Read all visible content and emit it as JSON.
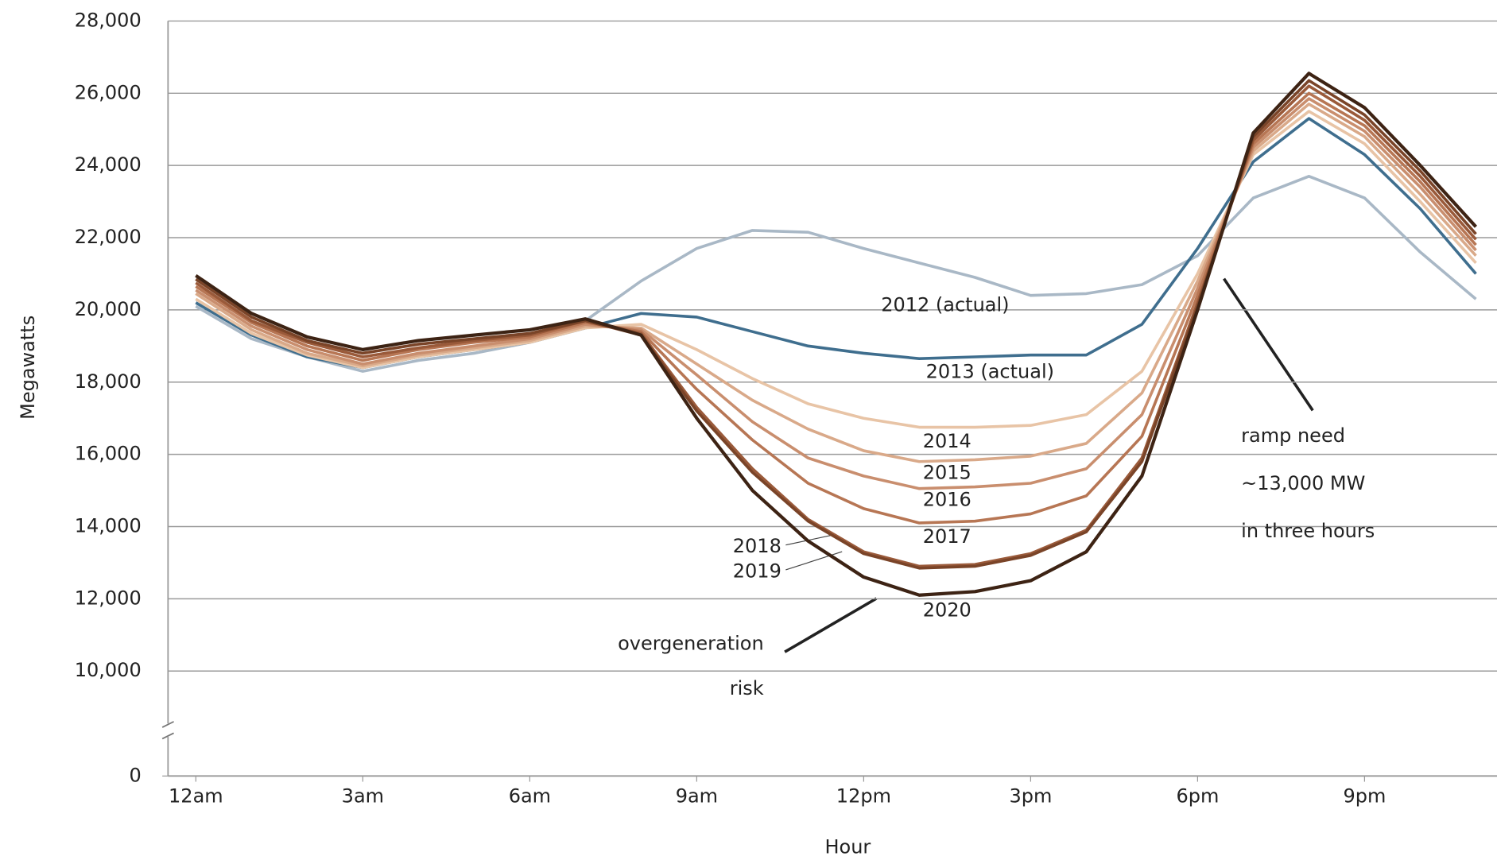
{
  "chart_data": {
    "type": "line",
    "y_label": "Megawatts",
    "x_label": "Hour",
    "x": [
      0,
      1,
      2,
      3,
      4,
      5,
      6,
      7,
      8,
      9,
      10,
      11,
      12,
      13,
      14,
      15,
      16,
      17,
      18,
      19,
      20,
      21,
      22,
      23
    ],
    "xlim": [
      -0.5,
      23.5
    ],
    "xticks": [
      {
        "value": 0,
        "label": "12am"
      },
      {
        "value": 3,
        "label": "3am"
      },
      {
        "value": 6,
        "label": "6am"
      },
      {
        "value": 9,
        "label": "9am"
      },
      {
        "value": 12,
        "label": "12pm"
      },
      {
        "value": 15,
        "label": "3pm"
      },
      {
        "value": 18,
        "label": "6pm"
      },
      {
        "value": 21,
        "label": "9pm"
      }
    ],
    "ylim": [
      0,
      28000
    ],
    "y_break": [
      0,
      10000
    ],
    "yticks": [
      0,
      {
        "value": 10000,
        "label": "10,000"
      },
      {
        "value": 12000,
        "label": "12,000"
      },
      {
        "value": 14000,
        "label": "14,000"
      },
      {
        "value": 16000,
        "label": "16,000"
      },
      {
        "value": 18000,
        "label": "18,000"
      },
      {
        "value": 20000,
        "label": "20,000"
      },
      {
        "value": 22000,
        "label": "22,000"
      },
      {
        "value": 24000,
        "label": "24,000"
      },
      {
        "value": 26000,
        "label": "26,000"
      },
      {
        "value": 28000,
        "label": "28,000"
      }
    ],
    "grid": true,
    "series": [
      {
        "name": "2012 (actual)",
        "color": "#a9b8c6",
        "values": [
          20100,
          19200,
          18700,
          18300,
          18600,
          18800,
          19100,
          19700,
          20800,
          21700,
          22200,
          22150,
          21700,
          21300,
          20900,
          20400,
          20450,
          20700,
          21500,
          23100,
          23700,
          23100,
          21600,
          20300
        ]
      },
      {
        "name": "2013 (actual)",
        "color": "#3f6e8e",
        "values": [
          20200,
          19300,
          18700,
          18400,
          18700,
          18900,
          19100,
          19500,
          19900,
          19800,
          19400,
          19000,
          18800,
          18650,
          18700,
          18750,
          18750,
          19600,
          21700,
          24100,
          25300,
          24300,
          22800,
          21000
        ]
      },
      {
        "name": "2014",
        "color": "#e8c4a6",
        "values": [
          20300,
          19350,
          18750,
          18400,
          18700,
          18900,
          19100,
          19500,
          19600,
          18900,
          18100,
          17400,
          17000,
          16750,
          16750,
          16800,
          17100,
          18300,
          21000,
          24300,
          25500,
          24600,
          23000,
          21300
        ]
      },
      {
        "name": "2015",
        "color": "#d9a989",
        "values": [
          20450,
          19450,
          18800,
          18450,
          18750,
          18950,
          19150,
          19550,
          19500,
          18500,
          17500,
          16700,
          16100,
          15800,
          15850,
          15950,
          16300,
          17700,
          20800,
          24400,
          25700,
          24800,
          23200,
          21500
        ]
      },
      {
        "name": "2016",
        "color": "#c98e6e",
        "values": [
          20550,
          19550,
          18900,
          18500,
          18800,
          19000,
          19200,
          19600,
          19450,
          18200,
          16900,
          15900,
          15400,
          15050,
          15100,
          15200,
          15600,
          17100,
          20600,
          24500,
          25850,
          24950,
          23400,
          21650
        ]
      },
      {
        "name": "2017",
        "color": "#b77654",
        "values": [
          20650,
          19650,
          19000,
          18600,
          18900,
          19100,
          19250,
          19650,
          19400,
          17800,
          16400,
          15200,
          14500,
          14100,
          14150,
          14350,
          14850,
          16500,
          20400,
          24600,
          26000,
          25100,
          23550,
          21800
        ]
      },
      {
        "name": "2018",
        "color": "#9a5a3a",
        "values": [
          20750,
          19700,
          19100,
          18700,
          18950,
          19150,
          19300,
          19700,
          19350,
          17300,
          15600,
          14200,
          13300,
          12900,
          12950,
          13250,
          13900,
          15900,
          20200,
          24700,
          26200,
          25250,
          23700,
          21950
        ]
      },
      {
        "name": "2019",
        "color": "#7a4428",
        "values": [
          20850,
          19800,
          19150,
          18800,
          19050,
          19200,
          19350,
          19700,
          19300,
          17200,
          15500,
          14150,
          13250,
          12850,
          12900,
          13200,
          13850,
          15800,
          20100,
          24800,
          26350,
          25400,
          23850,
          22100
        ]
      },
      {
        "name": "2020",
        "color": "#3d2314",
        "values": [
          20950,
          19900,
          19250,
          18900,
          19150,
          19300,
          19450,
          19750,
          19300,
          17000,
          15000,
          13600,
          12600,
          12100,
          12200,
          12500,
          13300,
          15400,
          20000,
          24900,
          26550,
          25600,
          24000,
          22300
        ]
      }
    ],
    "annotations": [
      {
        "lines": [
          "overgeneration",
          "risk"
        ]
      },
      {
        "lines": [
          "ramp need",
          "~13,000 MW",
          "in three hours"
        ]
      }
    ]
  }
}
